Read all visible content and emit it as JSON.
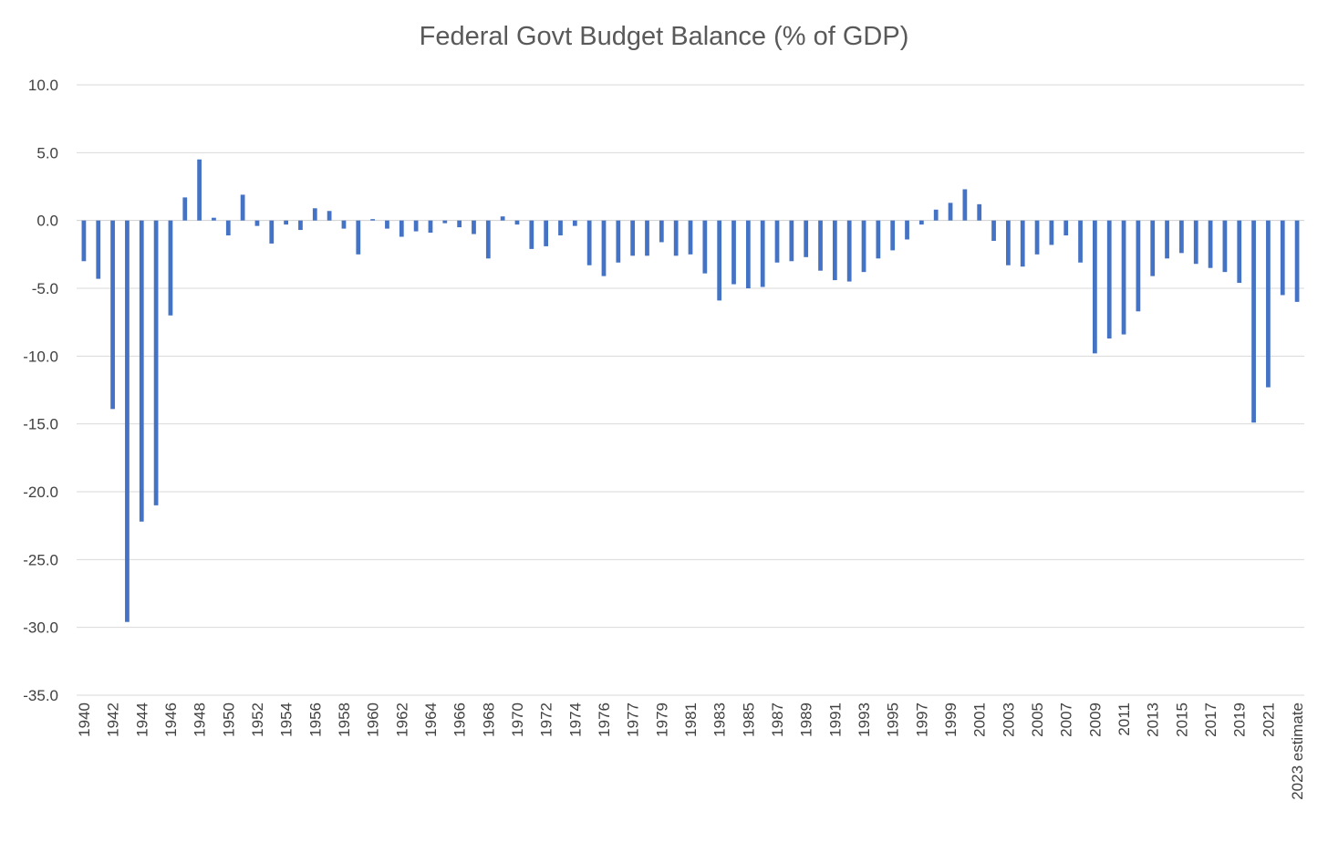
{
  "chart_data": {
    "type": "bar",
    "title": "Federal Govt Budget Balance (% of GDP)",
    "xlabel": "",
    "ylabel": "",
    "ylim": [
      -35,
      10
    ],
    "yticks": [
      "10.0",
      "5.0",
      "0.0",
      "-5.0",
      "-10.0",
      "-15.0",
      "-20.0",
      "-25.0",
      "-30.0",
      "-35.0"
    ],
    "grid": true,
    "legend": "none",
    "bar_color": "#4472C4",
    "categories": [
      "1940",
      "1941",
      "1942",
      "1943",
      "1944",
      "1945",
      "1946",
      "1947",
      "1948",
      "1949",
      "1950",
      "1951",
      "1952",
      "1953",
      "1954",
      "1955",
      "1956",
      "1957",
      "1958",
      "1959",
      "1960",
      "1961",
      "1962",
      "1963",
      "1964",
      "1965",
      "1966",
      "1967",
      "1968",
      "1969",
      "1970",
      "1971",
      "1972",
      "1973",
      "1974",
      "1975",
      "1976",
      "TQ",
      "1977",
      "1978",
      "1979",
      "1980",
      "1981",
      "1982",
      "1983",
      "1984",
      "1985",
      "1986",
      "1987",
      "1988",
      "1989",
      "1990",
      "1991",
      "1992",
      "1993",
      "1994",
      "1995",
      "1996",
      "1997",
      "1998",
      "1999",
      "2000",
      "2001",
      "2002",
      "2003",
      "2004",
      "2005",
      "2006",
      "2007",
      "2008",
      "2009",
      "2010",
      "2011",
      "2012",
      "2013",
      "2014",
      "2015",
      "2016",
      "2017",
      "2018",
      "2019",
      "2020",
      "2021",
      "2022",
      "2023 estimate"
    ],
    "visible_tick_labels": [
      "1940",
      "1942",
      "1944",
      "1946",
      "1948",
      "1950",
      "1952",
      "1954",
      "1956",
      "1958",
      "1960",
      "1962",
      "1964",
      "1966",
      "1968",
      "1970",
      "1972",
      "1974",
      "1976",
      "1977",
      "1979",
      "1981",
      "1983",
      "1985",
      "1987",
      "1989",
      "1991",
      "1993",
      "1995",
      "1997",
      "1999",
      "2001",
      "2003",
      "2005",
      "2007",
      "2009",
      "2011",
      "2013",
      "2015",
      "2017",
      "2019",
      "2021",
      "2023 estimate"
    ],
    "values": [
      -3.0,
      -4.3,
      -13.9,
      -29.6,
      -22.2,
      -21.0,
      -7.0,
      1.7,
      4.5,
      0.2,
      -1.1,
      1.9,
      -0.4,
      -1.7,
      -0.3,
      -0.7,
      0.9,
      0.7,
      -0.6,
      -2.5,
      0.1,
      -0.6,
      -1.2,
      -0.8,
      -0.9,
      -0.2,
      -0.5,
      -1.0,
      -2.8,
      0.3,
      -0.3,
      -2.1,
      -1.9,
      -1.1,
      -0.4,
      -3.3,
      -4.1,
      -3.1,
      -2.6,
      -2.6,
      -1.6,
      -2.6,
      -2.5,
      -3.9,
      -5.9,
      -4.7,
      -5.0,
      -4.9,
      -3.1,
      -3.0,
      -2.7,
      -3.7,
      -4.4,
      -4.5,
      -3.8,
      -2.8,
      -2.2,
      -1.4,
      -0.3,
      0.8,
      1.3,
      2.3,
      1.2,
      -1.5,
      -3.3,
      -3.4,
      -2.5,
      -1.8,
      -1.1,
      -3.1,
      -9.8,
      -8.7,
      -8.4,
      -6.7,
      -4.1,
      -2.8,
      -2.4,
      -3.2,
      -3.5,
      -3.8,
      -4.6,
      -14.9,
      -12.3,
      -5.5,
      -6.0
    ]
  }
}
